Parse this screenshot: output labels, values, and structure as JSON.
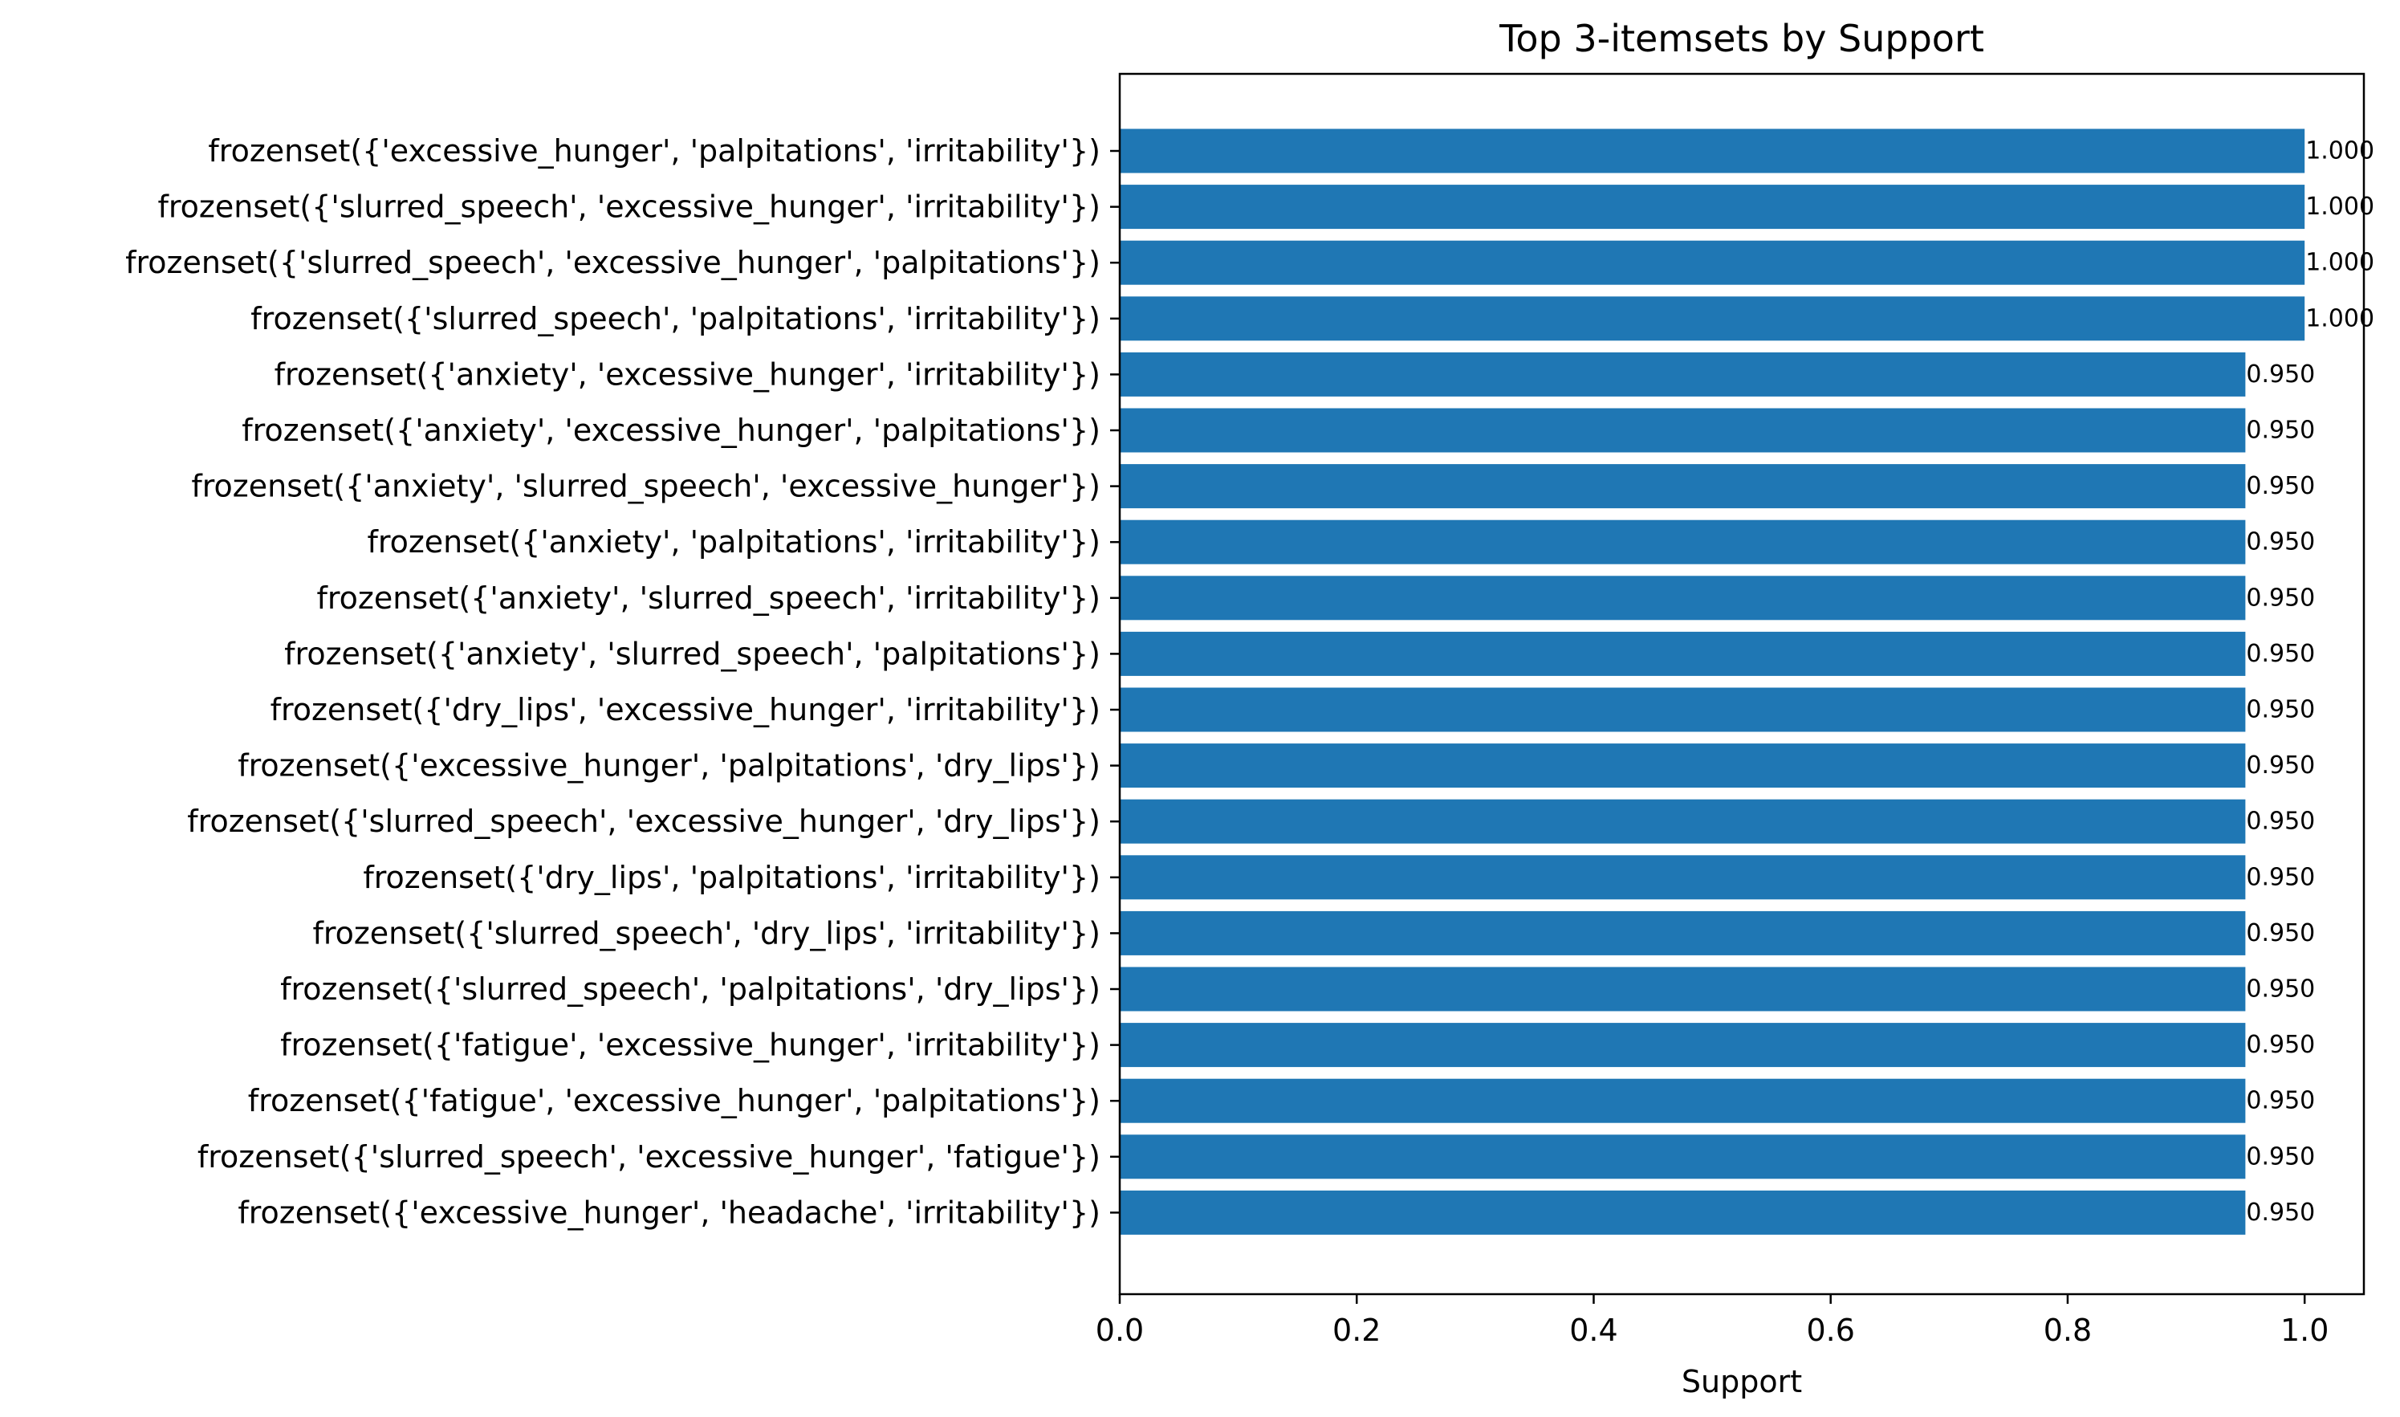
{
  "chart_data": {
    "type": "bar",
    "orientation": "horizontal",
    "title": "Top 3-itemsets by Support",
    "xlabel": "Support",
    "ylabel": "",
    "xlim": [
      0,
      1.05
    ],
    "xticks": [
      "0.0",
      "0.2",
      "0.4",
      "0.6",
      "0.8",
      "1.0"
    ],
    "grid": false,
    "bar_color": "#1f77b4",
    "categories": [
      "frozenset({'excessive_hunger', 'palpitations', 'irritability'})",
      "frozenset({'slurred_speech', 'excessive_hunger', 'irritability'})",
      "frozenset({'slurred_speech', 'excessive_hunger', 'palpitations'})",
      "frozenset({'slurred_speech', 'palpitations', 'irritability'})",
      "frozenset({'anxiety', 'excessive_hunger', 'irritability'})",
      "frozenset({'anxiety', 'excessive_hunger', 'palpitations'})",
      "frozenset({'anxiety', 'slurred_speech', 'excessive_hunger'})",
      "frozenset({'anxiety', 'palpitations', 'irritability'})",
      "frozenset({'anxiety', 'slurred_speech', 'irritability'})",
      "frozenset({'anxiety', 'slurred_speech', 'palpitations'})",
      "frozenset({'dry_lips', 'excessive_hunger', 'irritability'})",
      "frozenset({'excessive_hunger', 'palpitations', 'dry_lips'})",
      "frozenset({'slurred_speech', 'excessive_hunger', 'dry_lips'})",
      "frozenset({'dry_lips', 'palpitations', 'irritability'})",
      "frozenset({'slurred_speech', 'dry_lips', 'irritability'})",
      "frozenset({'slurred_speech', 'palpitations', 'dry_lips'})",
      "frozenset({'fatigue', 'excessive_hunger', 'irritability'})",
      "frozenset({'fatigue', 'excessive_hunger', 'palpitations'})",
      "frozenset({'slurred_speech', 'excessive_hunger', 'fatigue'})",
      "frozenset({'excessive_hunger', 'headache', 'irritability'})"
    ],
    "values": [
      1.0,
      1.0,
      1.0,
      1.0,
      0.95,
      0.95,
      0.95,
      0.95,
      0.95,
      0.95,
      0.95,
      0.95,
      0.95,
      0.95,
      0.95,
      0.95,
      0.95,
      0.95,
      0.95,
      0.95
    ],
    "value_labels": [
      "1.000",
      "1.000",
      "1.000",
      "1.000",
      "0.950",
      "0.950",
      "0.950",
      "0.950",
      "0.950",
      "0.950",
      "0.950",
      "0.950",
      "0.950",
      "0.950",
      "0.950",
      "0.950",
      "0.950",
      "0.950",
      "0.950",
      "0.950"
    ]
  }
}
